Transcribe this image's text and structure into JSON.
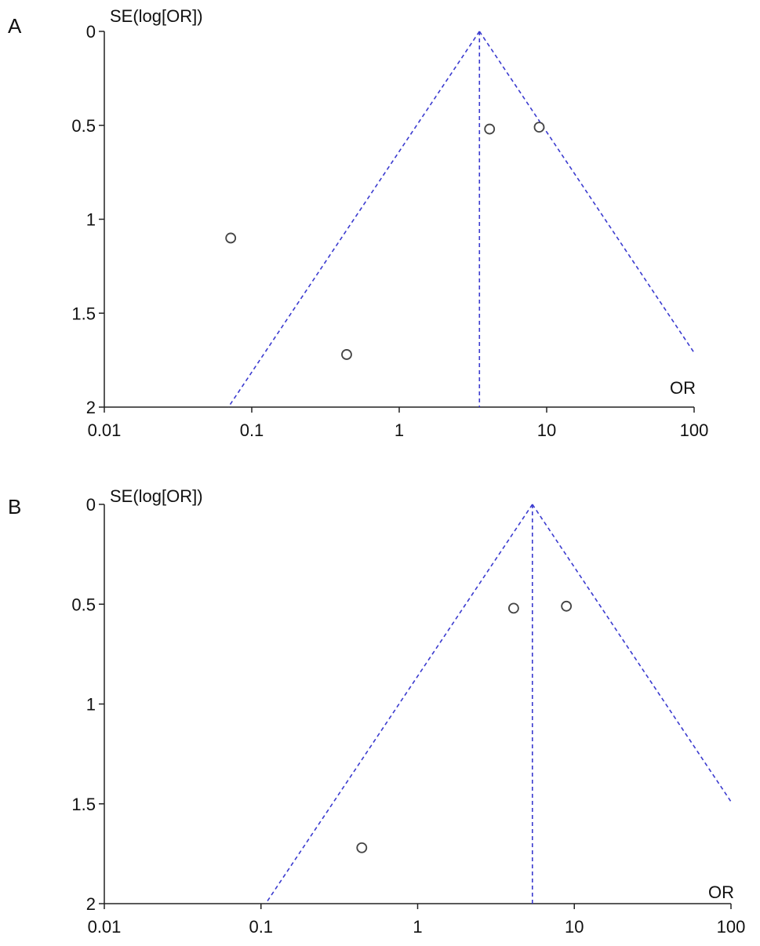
{
  "chart_data": [
    {
      "type": "scatter",
      "panel_label": "A",
      "ylabel": "SE(log[OR])",
      "xlabel": "OR",
      "x_scale": "log",
      "xlim": [
        0.01,
        100
      ],
      "ylim": [
        0,
        2
      ],
      "y_inverted": true,
      "x_ticks": [
        "0.01",
        "0.1",
        "1",
        "10",
        "100"
      ],
      "y_ticks": [
        "0",
        "0.5",
        "1",
        "1.5",
        "2"
      ],
      "pooled_or": 3.5,
      "funnel_color": "#3b3bcf",
      "points": [
        {
          "or": 4.1,
          "se": 0.52
        },
        {
          "or": 8.9,
          "se": 0.51
        },
        {
          "or": 0.072,
          "se": 1.1
        },
        {
          "or": 0.44,
          "se": 1.72
        }
      ]
    },
    {
      "type": "scatter",
      "panel_label": "B",
      "ylabel": "SE(log[OR])",
      "xlabel": "OR",
      "x_scale": "log",
      "xlim": [
        0.01,
        100
      ],
      "ylim": [
        0,
        2
      ],
      "y_inverted": true,
      "x_ticks": [
        "0.01",
        "0.1",
        "1",
        "10",
        "100"
      ],
      "y_ticks": [
        "0",
        "0.5",
        "1",
        "1.5",
        "2"
      ],
      "pooled_or": 5.4,
      "funnel_color": "#3b3bcf",
      "points": [
        {
          "or": 4.1,
          "se": 0.52
        },
        {
          "or": 8.9,
          "se": 0.51
        },
        {
          "or": 0.44,
          "se": 1.72
        }
      ]
    }
  ]
}
